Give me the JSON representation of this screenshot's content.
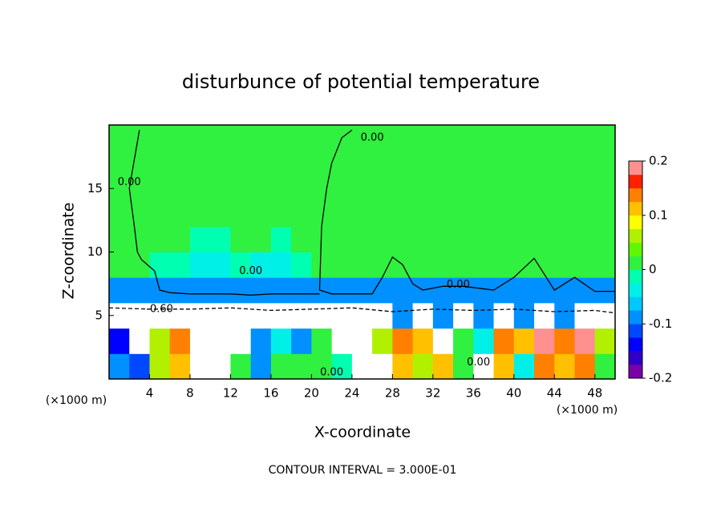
{
  "chart_data": {
    "type": "contour",
    "title": "disturbunce of potential temperature",
    "x_label": "X-coordinate",
    "y_label": "Z-coordinate",
    "x_unit": "(×1000 m)",
    "x_unit_right": "(×1000 m)",
    "footer": "CONTOUR INTERVAL = 3.000E-01",
    "xlim": [
      0,
      50
    ],
    "ylim": [
      0,
      20
    ],
    "xticks": [
      4,
      8,
      12,
      16,
      20,
      24,
      28,
      32,
      36,
      40,
      44,
      48
    ],
    "yticks": [
      5,
      10,
      15
    ],
    "zlim": [
      -0.2,
      0.2
    ],
    "zticks": [
      -0.2,
      -0.1,
      0,
      0.1,
      0.2
    ],
    "colors": [
      "#7a00a8",
      "#3000c8",
      "#0000ff",
      "#0048ff",
      "#0090ff",
      "#00c8ff",
      "#00f0e8",
      "#00ffb0",
      "#30f040",
      "#60f800",
      "#b0f000",
      "#ffff00",
      "#ffc000",
      "#ff8000",
      "#ff2000",
      "#ff9090"
    ],
    "x": [
      1,
      3,
      5,
      7,
      9,
      11,
      13,
      15,
      17,
      19,
      21,
      23,
      25,
      27,
      29,
      31,
      33,
      35,
      37,
      39,
      41,
      43,
      45,
      47,
      49
    ],
    "y": [
      1,
      3,
      5,
      7,
      9,
      11,
      13,
      15,
      17,
      19
    ],
    "z": [
      [
        -0.1,
        -0.12,
        0.05,
        0.12,
        -0.6,
        -0.6,
        0.0,
        -0.08,
        0.0,
        0.02,
        0.0,
        -0.02,
        -0.6,
        -0.6,
        0.1,
        0.05,
        0.12,
        0.0,
        -0.6,
        0.1,
        -0.05,
        0.15,
        0.1,
        0.15,
        0.02
      ],
      [
        -0.15,
        -0.6,
        0.05,
        0.15,
        -0.6,
        -0.6,
        -0.6,
        -0.1,
        -0.05,
        -0.08,
        0.0,
        -0.6,
        -0.6,
        0.05,
        0.15,
        0.1,
        -0.6,
        0.0,
        -0.05,
        0.15,
        0.1,
        0.2,
        0.15,
        0.18,
        0.05
      ],
      [
        -0.6,
        -0.6,
        -0.6,
        -0.6,
        -0.6,
        -0.6,
        -0.6,
        -0.6,
        -0.6,
        -0.6,
        -0.6,
        -0.6,
        -0.6,
        -0.6,
        -0.1,
        -0.6,
        -0.1,
        -0.6,
        -0.1,
        -0.6,
        -0.1,
        -0.6,
        -0.1,
        -0.6,
        -0.6
      ],
      [
        -0.08,
        -0.08,
        -0.08,
        -0.08,
        -0.08,
        -0.08,
        -0.08,
        -0.08,
        -0.08,
        -0.08,
        -0.08,
        -0.08,
        -0.08,
        -0.08,
        -0.08,
        -0.08,
        -0.08,
        -0.08,
        -0.08,
        -0.08,
        -0.08,
        -0.08,
        -0.08,
        -0.08,
        -0.08
      ],
      [
        0.01,
        0.01,
        -0.02,
        -0.02,
        -0.03,
        -0.03,
        -0.02,
        -0.03,
        -0.03,
        -0.02,
        0.01,
        0.01,
        0.01,
        0.02,
        0.01,
        0.01,
        0.01,
        0.01,
        0.01,
        0.01,
        0.01,
        0.01,
        0.01,
        0.01,
        0.01
      ],
      [
        0.01,
        0.01,
        0.01,
        0.01,
        -0.02,
        -0.02,
        0.01,
        0.01,
        -0.02,
        0.01,
        0.01,
        0.01,
        0.01,
        0.02,
        0.02,
        0.01,
        0.01,
        0.01,
        0.01,
        0.01,
        0.01,
        0.01,
        0.01,
        0.01,
        0.01
      ],
      [
        0.01,
        0.01,
        0.01,
        0.01,
        0.01,
        0.01,
        0.01,
        0.01,
        0.01,
        0.01,
        0.01,
        0.01,
        0.01,
        0.01,
        0.01,
        0.01,
        0.01,
        0.01,
        0.01,
        0.01,
        0.01,
        0.01,
        0.01,
        0.01,
        0.01
      ],
      [
        0.01,
        0.01,
        0.01,
        0.01,
        0.01,
        0.01,
        0.01,
        0.01,
        0.01,
        0.01,
        0.01,
        0.01,
        0.01,
        0.01,
        0.01,
        0.01,
        0.01,
        0.01,
        0.01,
        0.01,
        0.01,
        0.01,
        0.01,
        0.01,
        0.01
      ],
      [
        0.01,
        0.01,
        0.01,
        0.01,
        0.01,
        0.01,
        0.01,
        0.01,
        0.01,
        0.01,
        0.01,
        0.01,
        0.01,
        0.01,
        0.01,
        0.01,
        0.01,
        0.01,
        0.01,
        0.01,
        0.01,
        0.01,
        0.01,
        0.01,
        0.01
      ],
      [
        0.01,
        0.01,
        0.01,
        0.01,
        0.01,
        0.01,
        0.01,
        0.01,
        0.01,
        0.01,
        0.01,
        0.01,
        0.01,
        0.01,
        0.01,
        0.01,
        0.01,
        0.01,
        0.01,
        0.01,
        0.01,
        0.01,
        0.01,
        0.01,
        0.01
      ]
    ],
    "contours": [
      {
        "level": 0,
        "x": [
          24,
          23,
          22,
          21.5,
          21,
          20.8,
          22,
          26,
          27,
          28,
          29,
          30,
          31,
          33,
          35,
          38,
          40,
          42,
          44,
          46,
          48,
          50
        ],
        "y": [
          19.6,
          19,
          17,
          15,
          12,
          7,
          6.7,
          6.7,
          8,
          9.6,
          9,
          7.5,
          7,
          7.3,
          7.3,
          7,
          8,
          9.5,
          7,
          8,
          6.9,
          6.9
        ]
      },
      {
        "level": 0,
        "x": [
          3,
          2,
          2.5,
          2.8,
          3.2,
          4.5,
          5,
          6,
          8,
          12,
          14,
          16,
          18,
          20.8
        ],
        "y": [
          19.6,
          15,
          12,
          10,
          9.4,
          8.5,
          7,
          6.8,
          6.7,
          6.7,
          6.6,
          6.7,
          6.7,
          6.7
        ]
      },
      {
        "level": -0.6,
        "x": [
          0,
          4,
          8,
          12,
          16,
          20,
          24,
          28,
          32,
          36,
          40,
          44,
          48,
          50
        ],
        "y": [
          5.6,
          5.5,
          5.5,
          5.6,
          5.4,
          5.5,
          5.6,
          5.3,
          5.5,
          5.4,
          5.5,
          5.3,
          5.4,
          5.2
        ]
      }
    ],
    "contour_labels": [
      {
        "text": "0.00",
        "x": 2,
        "y": 15.5
      },
      {
        "text": "0.00",
        "x": 26,
        "y": 19
      },
      {
        "text": "0.00",
        "x": 14,
        "y": 8.5
      },
      {
        "text": "0.00",
        "x": 34.5,
        "y": 7.4
      },
      {
        "text": "-0.60",
        "x": 5,
        "y": 5.5
      },
      {
        "text": "0.00",
        "x": 22,
        "y": 0.5
      },
      {
        "text": "0.00",
        "x": 36.5,
        "y": 1.3
      }
    ]
  }
}
